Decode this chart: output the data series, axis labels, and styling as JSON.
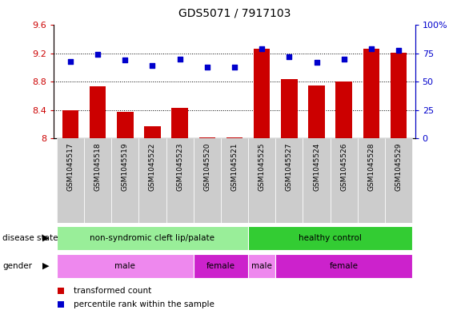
{
  "title": "GDS5071 / 7917103",
  "samples": [
    "GSM1045517",
    "GSM1045518",
    "GSM1045519",
    "GSM1045522",
    "GSM1045523",
    "GSM1045520",
    "GSM1045521",
    "GSM1045525",
    "GSM1045527",
    "GSM1045524",
    "GSM1045526",
    "GSM1045528",
    "GSM1045529"
  ],
  "bar_values": [
    8.4,
    8.73,
    8.37,
    8.17,
    8.43,
    8.01,
    8.01,
    9.27,
    8.84,
    8.75,
    8.8,
    9.27,
    9.21
  ],
  "scatter_values": [
    68,
    74,
    69,
    64,
    70,
    63,
    63,
    79,
    72,
    67,
    70,
    79,
    78
  ],
  "ylim_left": [
    8.0,
    9.6
  ],
  "ylim_right": [
    0,
    100
  ],
  "yticks_left": [
    8.0,
    8.4,
    8.8,
    9.2,
    9.6
  ],
  "ytick_labels_left": [
    "8",
    "8.4",
    "8.8",
    "9.2",
    "9.6"
  ],
  "yticks_right": [
    0,
    25,
    50,
    75,
    100
  ],
  "ytick_labels_right": [
    "0",
    "25",
    "50",
    "75",
    "100%"
  ],
  "bar_color": "#cc0000",
  "scatter_color": "#0000cc",
  "plot_bg_color": "#ffffff",
  "disease_state_groups": [
    {
      "label": "non-syndromic cleft lip/palate",
      "color": "#99ee99",
      "start": 0,
      "end": 7
    },
    {
      "label": "healthy control",
      "color": "#33cc33",
      "start": 7,
      "end": 13
    }
  ],
  "gender_groups": [
    {
      "label": "male",
      "color": "#ee88ee",
      "start": 0,
      "end": 5
    },
    {
      "label": "female",
      "color": "#cc22cc",
      "start": 5,
      "end": 7
    },
    {
      "label": "male",
      "color": "#ee88ee",
      "start": 7,
      "end": 8
    },
    {
      "label": "female",
      "color": "#cc22cc",
      "start": 8,
      "end": 13
    }
  ],
  "legend_items": [
    {
      "label": "transformed count",
      "color": "#cc0000"
    },
    {
      "label": "percentile rank within the sample",
      "color": "#0000cc"
    }
  ],
  "grid_dotted_values": [
    8.4,
    8.8,
    9.2
  ],
  "background_color": "#ffffff",
  "tick_label_bg": "#cccccc"
}
